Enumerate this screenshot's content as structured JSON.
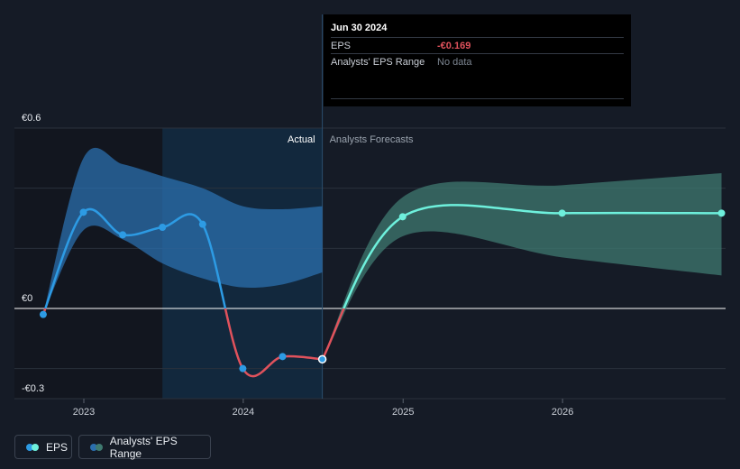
{
  "tooltip": {
    "date": "Jun 30 2024",
    "eps_label": "EPS",
    "eps_value": "-€0.169",
    "range_label": "Analysts' EPS Range",
    "range_value": "No data"
  },
  "legend": {
    "eps_label": "EPS",
    "range_label": "Analysts' EPS Range"
  },
  "colors": {
    "background": "#151b26",
    "eps_positive": "#2d9be4",
    "eps_negative": "#e0525c",
    "forecast_line": "#6ef0dc",
    "range_actual": "#2b6fae",
    "range_forecast": "#3f7a70",
    "negative_value_text": "#e0525c",
    "muted_text": "#7c8591"
  },
  "chart_data": {
    "type": "line",
    "y_tick_labels": [
      "€0.6",
      "€0",
      "-€0.3"
    ],
    "ylim": [
      -0.3,
      0.6
    ],
    "x_tick_labels": [
      "2023",
      "2024",
      "2025",
      "2026"
    ],
    "xlim": [
      "2022-09-30",
      "2026-12-31"
    ],
    "section_labels": [
      "Actual",
      "Analysts Forecasts"
    ],
    "series": [
      {
        "name": "EPS",
        "kind": "actual",
        "points": [
          {
            "x": "2022-09-30",
            "y": -0.02
          },
          {
            "x": "2022-12-31",
            "y": 0.32
          },
          {
            "x": "2023-03-31",
            "y": 0.245
          },
          {
            "x": "2023-06-30",
            "y": 0.27
          },
          {
            "x": "2023-09-30",
            "y": 0.28
          },
          {
            "x": "2023-12-31",
            "y": -0.2
          },
          {
            "x": "2024-03-31",
            "y": -0.16
          },
          {
            "x": "2024-06-30",
            "y": -0.169
          }
        ]
      },
      {
        "name": "EPS",
        "kind": "forecast",
        "points": [
          {
            "x": "2024-06-30",
            "y": -0.169
          },
          {
            "x": "2024-12-31",
            "y": 0.305
          },
          {
            "x": "2025-12-31",
            "y": 0.317
          },
          {
            "x": "2026-12-31",
            "y": 0.317
          }
        ]
      },
      {
        "name": "Analysts' EPS Range",
        "kind": "range_actual",
        "points": [
          {
            "x": "2022-09-30",
            "low": -0.02,
            "high": -0.02
          },
          {
            "x": "2022-12-31",
            "low": 0.26,
            "high": 0.5
          },
          {
            "x": "2023-03-31",
            "low": 0.23,
            "high": 0.48
          },
          {
            "x": "2023-06-30",
            "low": 0.15,
            "high": 0.44
          },
          {
            "x": "2023-09-30",
            "low": 0.1,
            "high": 0.4
          },
          {
            "x": "2023-12-31",
            "low": 0.07,
            "high": 0.34
          },
          {
            "x": "2024-03-31",
            "low": 0.08,
            "high": 0.33
          },
          {
            "x": "2024-06-30",
            "low": 0.12,
            "high": 0.34
          }
        ]
      },
      {
        "name": "Analysts' EPS Range",
        "kind": "range_forecast",
        "points": [
          {
            "x": "2024-06-30",
            "low": -0.169,
            "high": -0.169
          },
          {
            "x": "2024-12-31",
            "low": 0.24,
            "high": 0.37
          },
          {
            "x": "2025-12-31",
            "low": 0.17,
            "high": 0.41
          },
          {
            "x": "2026-12-31",
            "low": 0.11,
            "high": 0.45
          }
        ]
      }
    ],
    "highlight_point": {
      "x": "2024-06-30",
      "y": -0.169
    },
    "legend_position": "bottom-left"
  }
}
